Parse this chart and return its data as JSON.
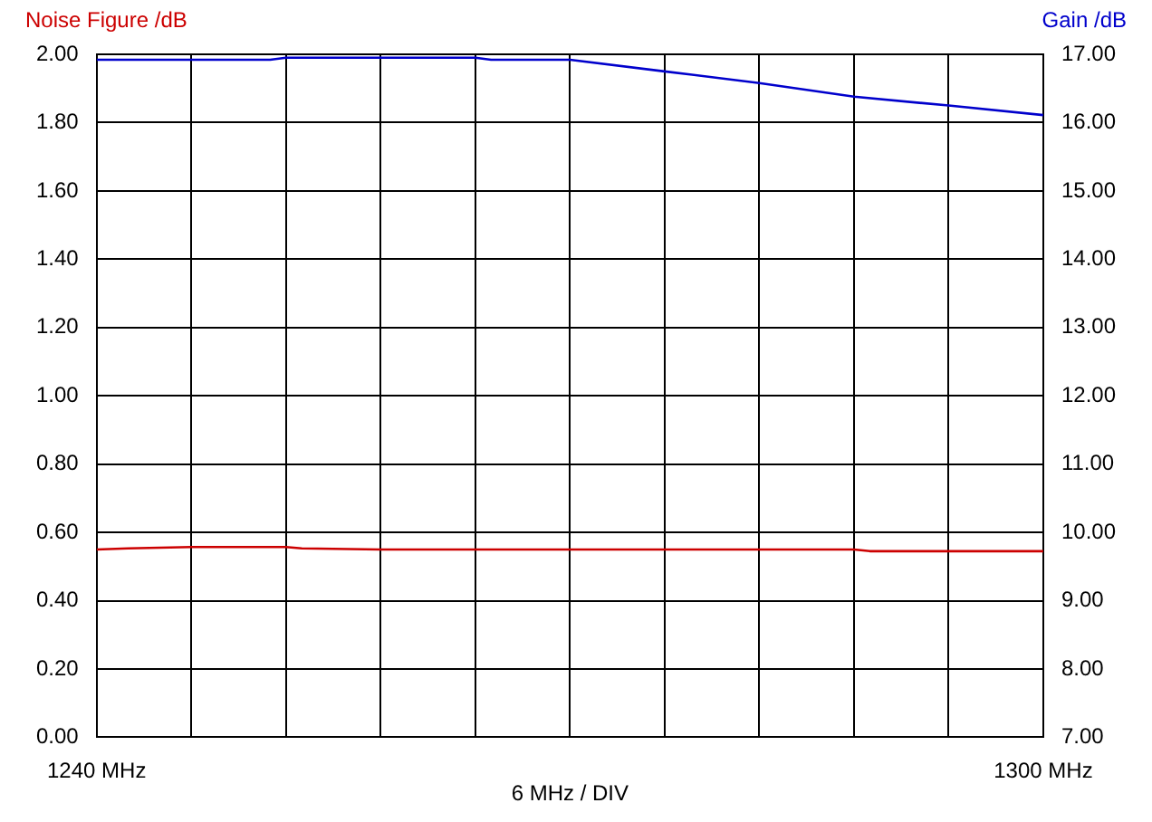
{
  "chart_data": {
    "type": "line",
    "ylabel": "Noise Figure /dB",
    "y2label": "Gain /dB",
    "xlim": [
      1240,
      1300
    ],
    "xticks": [
      {
        "value": 1240,
        "label": "1240 MHz"
      },
      {
        "value": 1246,
        "label": null
      },
      {
        "value": 1252,
        "label": null
      },
      {
        "value": 1258,
        "label": null
      },
      {
        "value": 1264,
        "label": null
      },
      {
        "value": 1270,
        "label": null
      },
      {
        "value": 1276,
        "label": null
      },
      {
        "value": 1282,
        "label": null
      },
      {
        "value": 1288,
        "label": null
      },
      {
        "value": 1294,
        "label": null
      },
      {
        "value": 1300,
        "label": "1300 MHz"
      }
    ],
    "ylim": [
      0,
      2
    ],
    "yticks": [
      {
        "value": 0,
        "label": "0.00"
      },
      {
        "value": 0.2,
        "label": "0.20"
      },
      {
        "value": 0.4,
        "label": "0.40"
      },
      {
        "value": 0.6,
        "label": "0.60"
      },
      {
        "value": 0.8,
        "label": "0.80"
      },
      {
        "value": 1,
        "label": "1.00"
      },
      {
        "value": 1.2,
        "label": "1.20"
      },
      {
        "value": 1.4,
        "label": "1.40"
      },
      {
        "value": 1.6,
        "label": "1.60"
      },
      {
        "value": 1.8,
        "label": "1.80"
      },
      {
        "value": 2,
        "label": "2.00"
      }
    ],
    "y2lim": [
      7,
      17
    ],
    "y2ticks": [
      {
        "value": 7,
        "label": "7.00"
      },
      {
        "value": 8,
        "label": "8.00"
      },
      {
        "value": 9,
        "label": "9.00"
      },
      {
        "value": 10,
        "label": "10.00"
      },
      {
        "value": 11,
        "label": "11.00"
      },
      {
        "value": 12,
        "label": "12.00"
      },
      {
        "value": 13,
        "label": "13.00"
      },
      {
        "value": 14,
        "label": "14.00"
      },
      {
        "value": 15,
        "label": "15.00"
      },
      {
        "value": 16,
        "label": "16.00"
      },
      {
        "value": 17,
        "label": "17.00"
      }
    ],
    "xlabel": "6 MHz / DIV",
    "grid": true,
    "legend": false,
    "marker": "none",
    "line_style": "solid",
    "series": [
      {
        "color": "#cc0000",
        "x": [
          1240,
          1242,
          1246,
          1252,
          1253,
          1258,
          1288,
          1289,
          1300
        ],
        "values": [
          0.55,
          0.553,
          0.557,
          0.557,
          0.553,
          0.55,
          0.55,
          0.545,
          0.545
        ]
      },
      {
        "color": "#0000cc",
        "axis": "y2",
        "x": [
          1240,
          1251,
          1252,
          1264,
          1265,
          1270,
          1276,
          1282,
          1288,
          1294,
          1300
        ],
        "values": [
          16.92,
          16.92,
          16.95,
          16.95,
          16.92,
          16.92,
          16.75,
          16.58,
          16.38,
          16.25,
          16.11
        ]
      }
    ]
  }
}
